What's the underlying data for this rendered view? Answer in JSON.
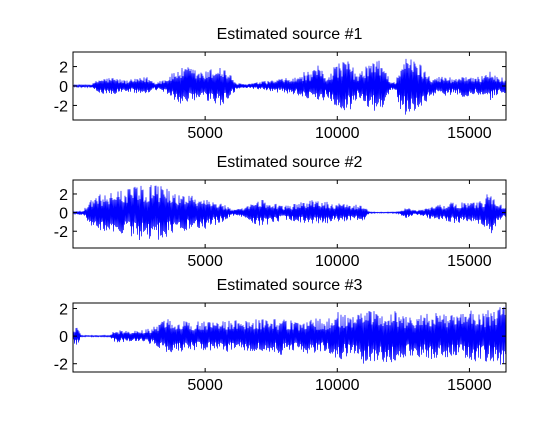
{
  "figure": {
    "background": "#ffffff",
    "line_color": "#0000ff",
    "axes_color": "#000000"
  },
  "chart_data": [
    {
      "type": "line",
      "title": "Estimated source #1",
      "xlabel": "",
      "ylabel": "",
      "xlim": [
        0,
        16384
      ],
      "ylim": [
        -3.5,
        3.5
      ],
      "xticks": [
        5000,
        10000,
        15000
      ],
      "xtick_labels": [
        "5000",
        "10000",
        "15000"
      ],
      "yticks": [
        2,
        0,
        -2
      ],
      "ytick_labels": [
        "2",
        "0",
        "-2"
      ],
      "grid": false,
      "series": [
        {
          "color": "#0000ff",
          "envelope": {
            "x": [
              0,
              700,
              1000,
              1500,
              2000,
              2500,
              2800,
              3100,
              3500,
              4000,
              4400,
              4700,
              5000,
              5300,
              5600,
              5900,
              6200,
              6500,
              7000,
              7500,
              8000,
              8500,
              8800,
              9000,
              9300,
              9600,
              9900,
              10200,
              10500,
              10800,
              11000,
              11300,
              11600,
              11900,
              12000,
              12200,
              12400,
              12600,
              12800,
              13000,
              13300,
              13600,
              13900,
              14200,
              14500,
              14800,
              15100,
              15400,
              15700,
              16000,
              16384
            ],
            "amplitude": [
              0.1,
              0.15,
              0.8,
              0.9,
              0.6,
              0.8,
              1.0,
              0.4,
              0.8,
              1.8,
              2.0,
              1.6,
              1.5,
              1.9,
              2.2,
              1.4,
              0.3,
              0.2,
              0.4,
              0.6,
              0.8,
              0.9,
              1.6,
              1.3,
              2.2,
              1.0,
              2.2,
              2.7,
              2.5,
              1.0,
              2.0,
              2.6,
              2.7,
              1.5,
              0.5,
              0.4,
              2.7,
              3.0,
              2.8,
              2.8,
              1.8,
              1.0,
              1.0,
              1.0,
              0.8,
              1.3,
              0.8,
              1.0,
              1.8,
              1.0,
              1.0
            ]
          }
        }
      ]
    },
    {
      "type": "line",
      "title": "Estimated source #2",
      "xlabel": "",
      "ylabel": "",
      "xlim": [
        0,
        16384
      ],
      "ylim": [
        -3.8,
        3.5
      ],
      "xticks": [
        5000,
        10000,
        15000
      ],
      "xtick_labels": [
        "5000",
        "10000",
        "15000"
      ],
      "yticks": [
        2,
        0,
        -2
      ],
      "ytick_labels": [
        "2",
        "0",
        "-2"
      ],
      "grid": false,
      "series": [
        {
          "color": "#0000ff",
          "envelope": {
            "x": [
              0,
              400,
              700,
              1000,
              1500,
              2000,
              2500,
              2800,
              3000,
              3300,
              3600,
              4000,
              4500,
              5000,
              5500,
              5800,
              6000,
              6500,
              7000,
              7500,
              8000,
              8500,
              9000,
              9500,
              10000,
              10500,
              11000,
              11200,
              11500,
              12000,
              12300,
              12600,
              12900,
              13200,
              13500,
              14000,
              14500,
              15000,
              15500,
              15800,
              16000,
              16200,
              16384
            ],
            "amplitude": [
              0.1,
              0.3,
              1.5,
              2.0,
              2.2,
              2.5,
              3.0,
              3.0,
              3.4,
              3.0,
              2.5,
              2.0,
              2.0,
              1.8,
              1.2,
              0.8,
              0.3,
              0.5,
              1.5,
              1.2,
              0.8,
              1.0,
              1.4,
              1.2,
              1.0,
              0.9,
              0.9,
              0.1,
              0.05,
              0.05,
              0.1,
              0.6,
              0.3,
              0.3,
              0.7,
              0.9,
              1.2,
              1.0,
              1.5,
              2.5,
              1.7,
              0.9,
              0.4
            ]
          }
        }
      ]
    },
    {
      "type": "line",
      "title": "Estimated source #3",
      "xlabel": "",
      "ylabel": "",
      "xlim": [
        0,
        16384
      ],
      "ylim": [
        -2.6,
        2.4
      ],
      "xticks": [
        5000,
        10000,
        15000
      ],
      "xtick_labels": [
        "5000",
        "10000",
        "15000"
      ],
      "yticks": [
        2,
        0,
        -2
      ],
      "ytick_labels": [
        "2",
        "0",
        "-2"
      ],
      "grid": false,
      "series": [
        {
          "color": "#0000ff",
          "envelope": {
            "x": [
              0,
              150,
              300,
              1400,
              1600,
              2000,
              2500,
              3000,
              3500,
              4000,
              4500,
              5000,
              5500,
              6000,
              6500,
              7000,
              7500,
              8000,
              8500,
              9000,
              9500,
              10000,
              10500,
              11000,
              11500,
              12000,
              12500,
              13000,
              13500,
              14000,
              14500,
              15000,
              15500,
              16000,
              16384
            ],
            "amplitude": [
              0.4,
              0.8,
              0.05,
              0.05,
              0.5,
              0.4,
              0.4,
              0.6,
              1.2,
              1.3,
              1.0,
              1.2,
              1.0,
              1.2,
              1.1,
              1.3,
              1.2,
              1.4,
              1.0,
              1.4,
              1.2,
              1.8,
              1.4,
              2.1,
              1.8,
              2.0,
              1.6,
              1.5,
              1.8,
              1.6,
              1.5,
              1.9,
              1.8,
              2.0,
              2.3
            ]
          }
        }
      ]
    }
  ]
}
